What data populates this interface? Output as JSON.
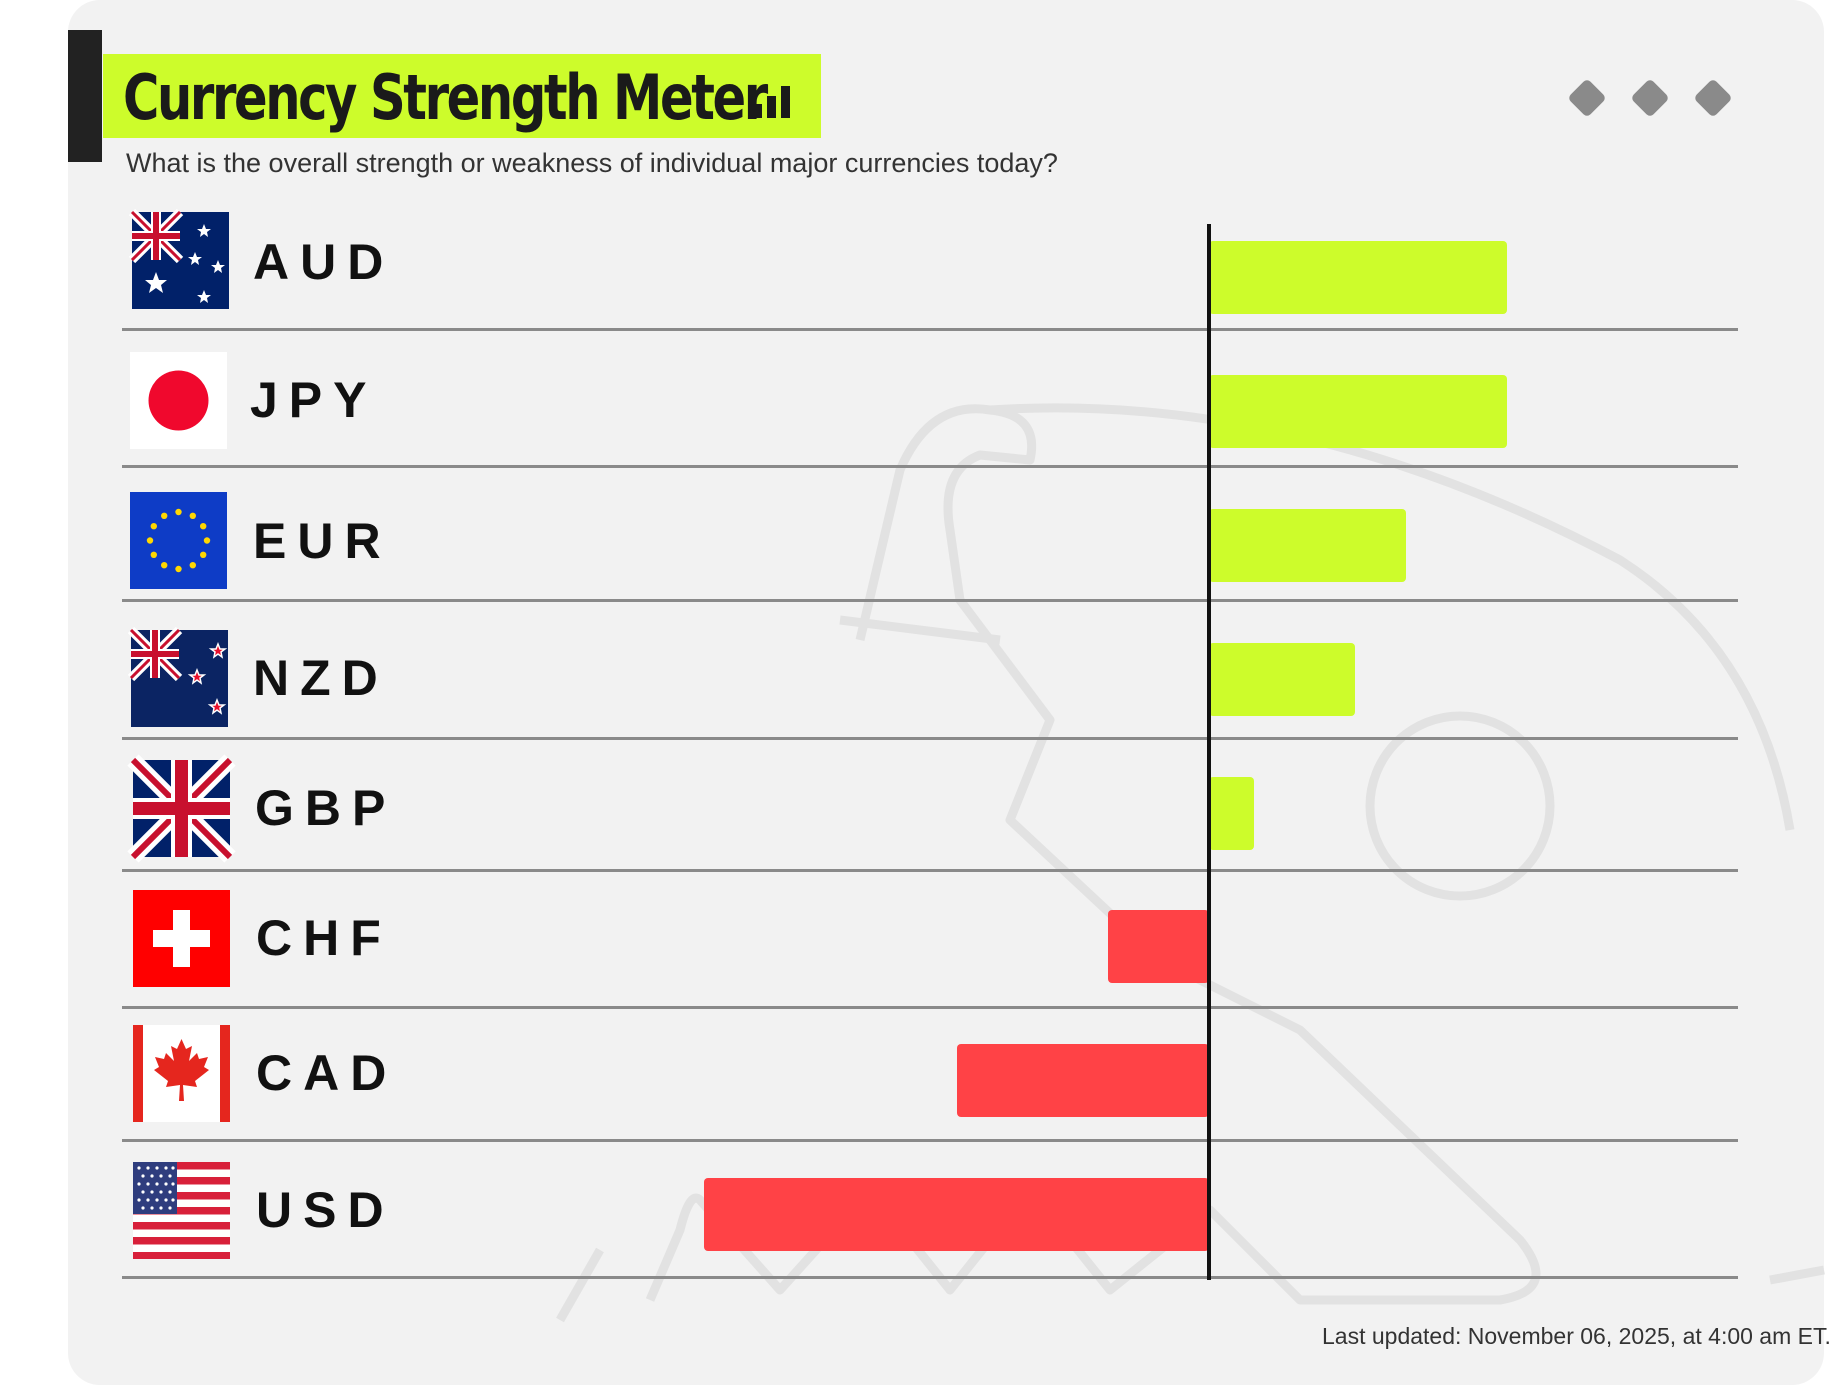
{
  "header": {
    "title": "Currency Strength Meter",
    "title_icon": "bar-chart-icon",
    "subtitle": "What is the overall strength or weakness of individual major currencies today?",
    "menu_icon": "more-options-icon"
  },
  "footer": {
    "last_updated": "Last updated: November 06, 2025, at 4:00 am ET."
  },
  "colors": {
    "positive": "#cdfc2b",
    "negative": "#ff4246",
    "axis": "#111111",
    "divider": "#8a8a8a"
  },
  "chart_data": {
    "type": "bar",
    "orientation": "horizontal",
    "title": "Currency Strength Meter",
    "subtitle": "What is the overall strength or weakness of individual major currencies today?",
    "categories": [
      "AUD",
      "JPY",
      "EUR",
      "NZD",
      "GBP",
      "CHF",
      "CAD",
      "USD"
    ],
    "values": [
      59,
      59,
      39,
      29,
      9,
      -20,
      -50,
      -100
    ],
    "value_scale": "relative (USD = -100)",
    "xlim": [
      -100,
      100
    ],
    "flags": [
      "australia-flag-icon",
      "japan-flag-icon",
      "eu-flag-icon",
      "new-zealand-flag-icon",
      "uk-flag-icon",
      "switzerland-flag-icon",
      "canada-flag-icon",
      "usa-flag-icon"
    ],
    "grid": false,
    "legend": "none"
  }
}
